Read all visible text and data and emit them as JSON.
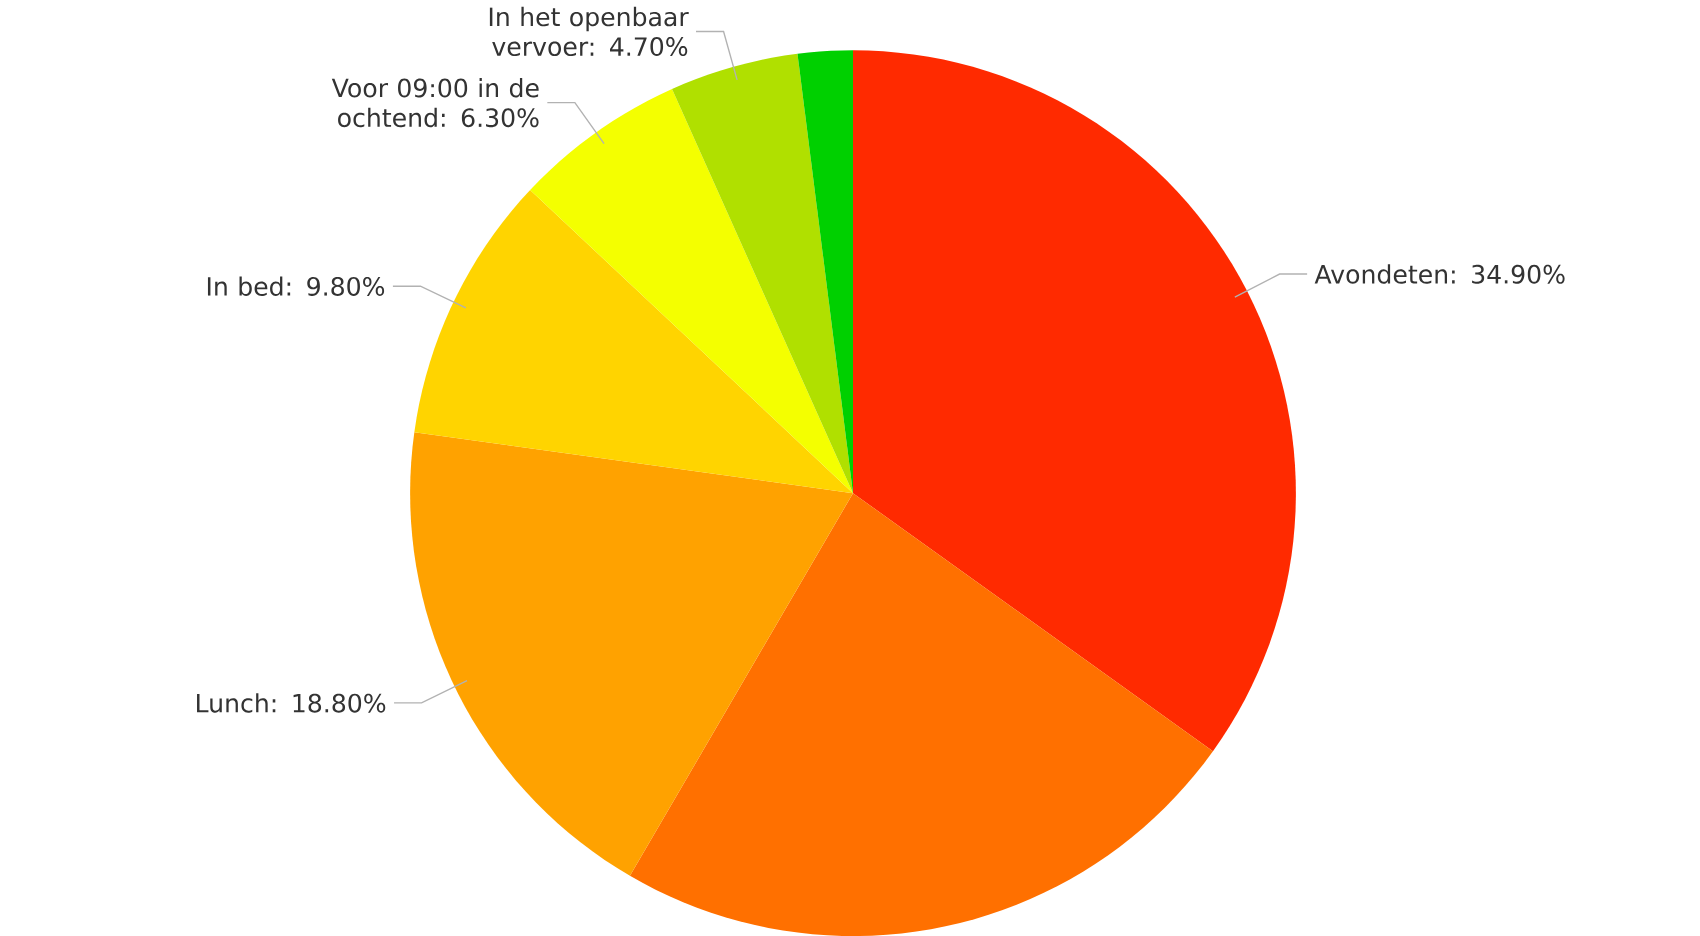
{
  "chart_data": {
    "type": "pie",
    "categories": [
      "Avondeten: 34.90%",
      null,
      "Lunch: 18.80%",
      "In bed: 9.80%",
      "Voor 09:00 in de ochtend: 6.30%",
      "In het openbaar vervoer: 4.70%",
      null
    ],
    "values": [
      34.9,
      23.5,
      18.8,
      9.8,
      6.3,
      4.7,
      2.0
    ],
    "colors": [
      "#ff2a00",
      "#ff7000",
      "#ffa200",
      "#ffd400",
      "#f4ff00",
      "#b0e000",
      "#00d000"
    ]
  }
}
